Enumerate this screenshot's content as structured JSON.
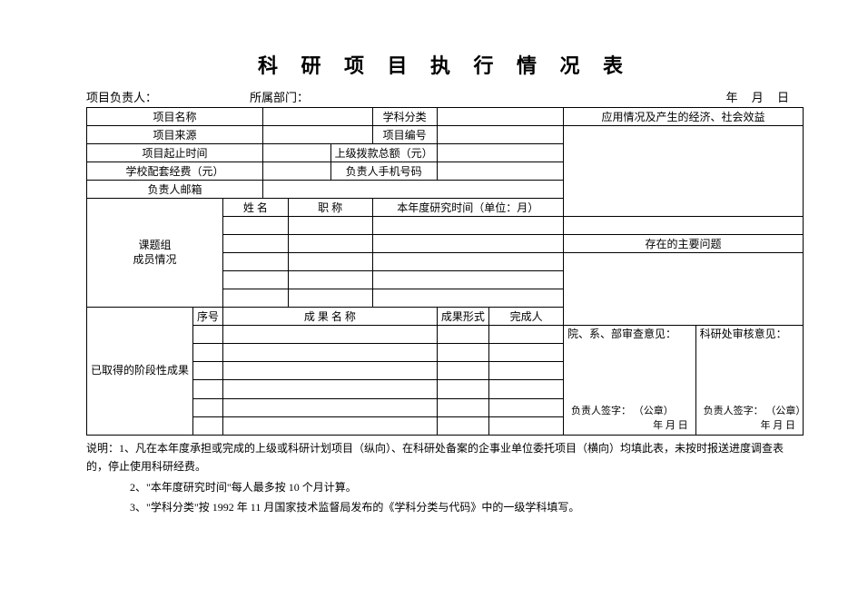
{
  "title": "科 研 项 目 执 行 情 况 表",
  "headline": {
    "leader_label": "项目负责人：",
    "dept_label": "所属部门：",
    "date_label": "年   月   日"
  },
  "rows": {
    "r1_projname": "项目名称",
    "r1_subject": "学科分类",
    "r1_effect": "应用情况及产生的经济、社会效益",
    "r2_source": "项目来源",
    "r2_projno": "项目编号",
    "r3_period": "项目起止时间",
    "r3_fund_up": "上级拨款总额（元）",
    "r4_school_fund": "学校配套经费（元）",
    "r4_phone": "负责人手机号码",
    "r5_email": "负责人邮箱",
    "members_label": "课题组\n成员情况",
    "m_name": "姓 名",
    "m_title": "职 称",
    "m_time": "本年度研究时间（单位：月）",
    "main_issue": "存在的主要问题",
    "stage_label": "已取得的阶段性成果",
    "s_no": "序号",
    "s_name": "成 果 名 称",
    "s_form": "成果形式",
    "s_done": "完成人",
    "dept_review": "院、系、部审查意见：",
    "office_review": "科研处审核意见：",
    "sign_line1": "负责人签字：           （公章）",
    "sign_line2": "年   月   日"
  },
  "notes": {
    "n1": "说明：1、凡在本年度承担或完成的上级或科研计划项目（纵向）、在科研处备案的企事业单位委托项目（横向）均填此表，未按时报送进度调查表的，停止使用科研经费。",
    "n2": "2、\"本年度研究时间\"每人最多按 10 个月计算。",
    "n3": "3、\"学科分类\"按 1992 年 11 月国家技术监督局发布的《学科分类与代码》中的一级学科填写。"
  }
}
